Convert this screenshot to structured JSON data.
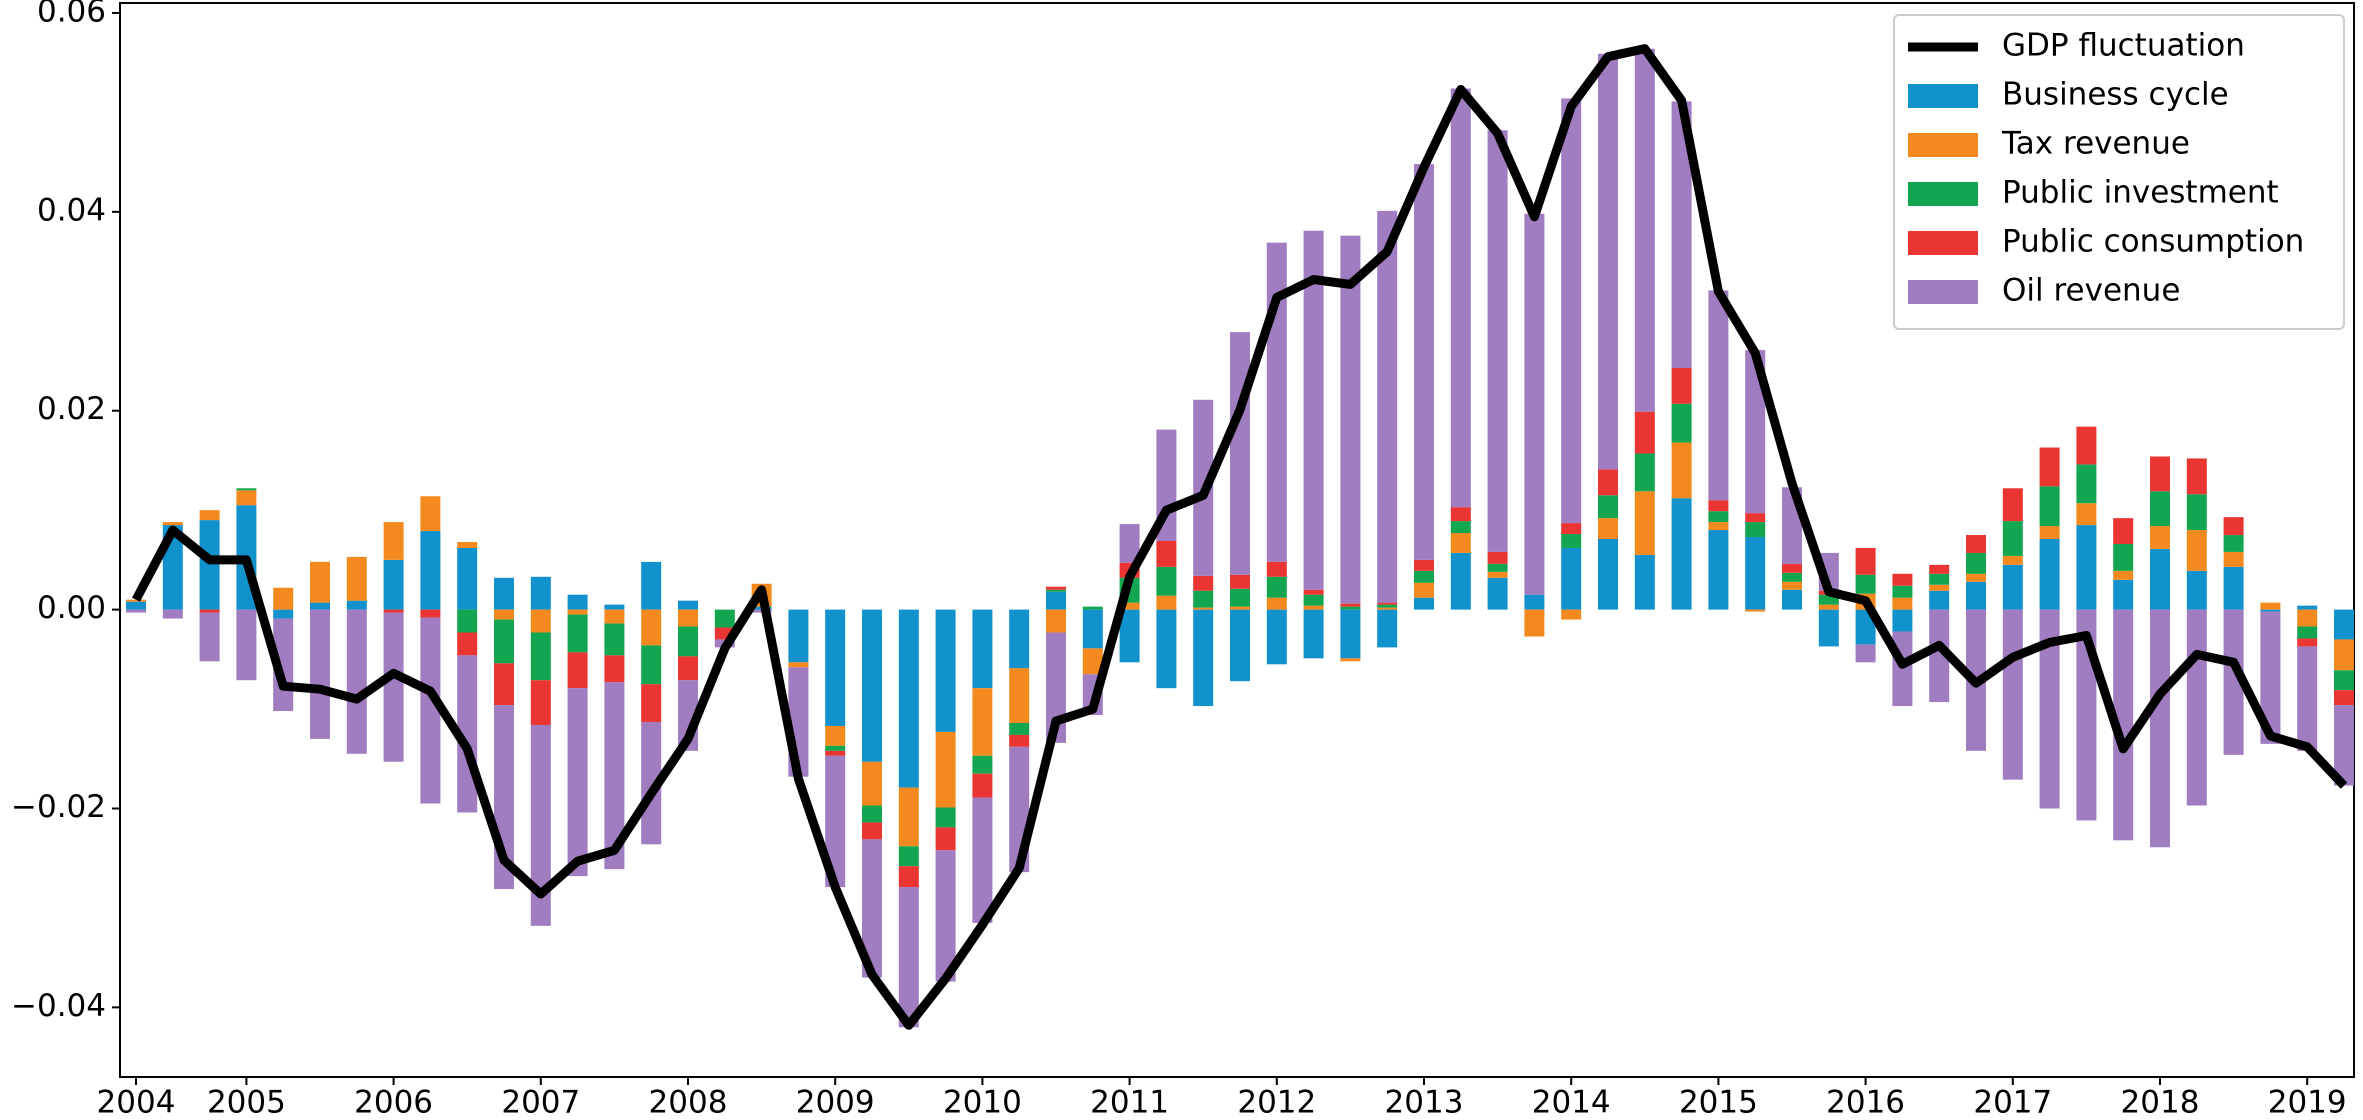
{
  "chart_data": {
    "type": "bar",
    "stacked": true,
    "legend": "upper right",
    "categories": [
      "2004",
      null,
      null,
      "2005",
      null,
      null,
      null,
      "2006",
      null,
      null,
      null,
      "2007",
      null,
      null,
      null,
      "2008",
      null,
      null,
      null,
      "2009",
      null,
      null,
      null,
      "2010",
      null,
      null,
      null,
      "2011",
      null,
      null,
      null,
      "2012",
      null,
      null,
      null,
      "2013",
      null,
      null,
      null,
      "2014",
      null,
      null,
      null,
      "2015",
      null,
      null,
      null,
      "2016",
      null,
      null,
      null,
      "2017",
      null,
      null,
      null,
      "2018",
      null,
      null,
      null,
      "2019",
      null
    ],
    "ylim": [
      -0.047,
      0.061
    ],
    "yticks": [
      {
        "value": -0.04,
        "label": "−0.04"
      },
      {
        "value": -0.02,
        "label": "−0.02"
      },
      {
        "value": 0,
        "label": "0.00"
      },
      {
        "value": 0.02,
        "label": "0.02"
      },
      {
        "value": 0.04,
        "label": "0.04"
      },
      {
        "value": 0.06,
        "label": "0.06"
      }
    ],
    "series": [
      {
        "name": "GDP fluctuation",
        "type": "line",
        "color": "#000000",
        "values": [
          0.001,
          0.008,
          0.005,
          0.005,
          -0.0077,
          -0.008,
          -0.009,
          -0.0064,
          -0.0082,
          -0.014,
          -0.0252,
          -0.0286,
          -0.0253,
          -0.0242,
          -0.0185,
          -0.013,
          -0.0039,
          0.002,
          -0.017,
          -0.0279,
          -0.0367,
          -0.0418,
          -0.0371,
          -0.0317,
          -0.026,
          -0.0112,
          -0.01,
          0.0033,
          0.01,
          0.0115,
          0.0201,
          0.0314,
          0.0332,
          0.0327,
          0.036,
          0.0445,
          0.0523,
          0.0479,
          0.0395,
          0.0506,
          0.0556,
          0.0564,
          0.0512,
          0.032,
          0.0258,
          0.0127,
          0.0018,
          0.0009,
          -0.0055,
          -0.0036,
          -0.0074,
          -0.0048,
          -0.0033,
          -0.0026,
          -0.014,
          -0.0085,
          -0.0045,
          -0.0053,
          -0.0127,
          -0.0138,
          -0.0177
        ]
      },
      {
        "name": "Business cycle",
        "color": "#1192cc",
        "values": [
          0.0008,
          0.0085,
          0.009,
          0.0105,
          -0.0009,
          0.0007,
          0.0009,
          0.005,
          0.0079,
          0.0062,
          0.0032,
          0.0033,
          0.0015,
          0.0005,
          0.0048,
          0.0009,
          0,
          0.0003,
          -0.0053,
          -0.0117,
          -0.0153,
          -0.0179,
          -0.0123,
          -0.0079,
          -0.0059,
          0.0018,
          -0.0039,
          -0.0053,
          -0.0079,
          -0.0097,
          -0.0072,
          -0.0055,
          -0.0049,
          -0.0049,
          -0.0038,
          0.0012,
          0.0057,
          0.0032,
          0.0015,
          0.0062,
          0.0071,
          0.0055,
          0.0112,
          0.008,
          0.0073,
          0.002,
          -0.0037,
          -0.0035,
          -0.0022,
          0.0019,
          0.0028,
          0.0045,
          0.0071,
          0.0085,
          0.003,
          0.0061,
          0.0039,
          0.0043,
          -0.0002,
          0.0004,
          -0.003
        ]
      },
      {
        "name": "Tax revenue",
        "color": "#f48a1f",
        "values": [
          0.0002,
          0.0003,
          0.001,
          0.0015,
          0.0022,
          0.0041,
          0.0044,
          0.0038,
          0.0035,
          0.0006,
          -0.001,
          -0.0023,
          -0.0005,
          -0.0014,
          -0.0036,
          -0.0017,
          0,
          0.0023,
          -0.0005,
          -0.002,
          -0.0044,
          -0.0059,
          -0.0076,
          -0.0068,
          -0.0055,
          -0.0023,
          -0.0026,
          0.0007,
          0.0014,
          0.0002,
          0.0003,
          0.0012,
          0.0004,
          -0.0003,
          0.0002,
          0.0015,
          0.002,
          0.0006,
          -0.0027,
          -0.001,
          0.0021,
          0.0064,
          0.0056,
          0.0008,
          -0.0002,
          0.0008,
          0.0005,
          0.0016,
          0.0012,
          0.0006,
          0.0008,
          0.0009,
          0.0013,
          0.0022,
          0.0009,
          0.0023,
          0.0041,
          0.0015,
          0.0007,
          -0.0017,
          -0.0031
        ]
      },
      {
        "name": "Public investment",
        "color": "#12a650",
        "values": [
          0,
          0,
          0,
          0.0002,
          0,
          0,
          0,
          0,
          0,
          -0.0023,
          -0.0044,
          -0.0048,
          -0.0038,
          -0.0032,
          -0.0039,
          -0.003,
          -0.0018,
          0,
          0,
          -0.0005,
          -0.0017,
          -0.002,
          -0.002,
          -0.0018,
          -0.0012,
          0.0002,
          0.0003,
          0.0025,
          0.0029,
          0.0017,
          0.0018,
          0.0021,
          0.0011,
          0.0003,
          0.0003,
          0.0012,
          0.0012,
          0.0008,
          0,
          0.0014,
          0.0023,
          0.0038,
          0.0039,
          0.0011,
          0.0015,
          0.0009,
          0.001,
          0.0019,
          0.0012,
          0.0011,
          0.0021,
          0.0035,
          0.004,
          0.0039,
          0.0027,
          0.0035,
          0.0036,
          0.0017,
          0,
          -0.0012,
          -0.002
        ]
      },
      {
        "name": "Public consumption",
        "color": "#ea3532",
        "values": [
          0,
          0,
          -0.0003,
          0,
          0,
          0,
          0,
          -0.0003,
          -0.0008,
          -0.0023,
          -0.0042,
          -0.0045,
          -0.0036,
          -0.0027,
          -0.0038,
          -0.0024,
          -0.0012,
          0,
          0,
          -0.0005,
          -0.0017,
          -0.0021,
          -0.0023,
          -0.0024,
          -0.0012,
          0.0003,
          0,
          0.0015,
          0.0026,
          0.0015,
          0.0014,
          0.0015,
          0.0005,
          0.0003,
          0.0002,
          0.0011,
          0.0014,
          0.0012,
          0,
          0.0011,
          0.0026,
          0.0042,
          0.0036,
          0.0011,
          0.0009,
          0.0009,
          0.0004,
          0.0027,
          0.0012,
          0.0009,
          0.0018,
          0.0033,
          0.0039,
          0.0038,
          0.0026,
          0.0035,
          0.0036,
          0.0018,
          0,
          -0.0008,
          -0.0015
        ]
      },
      {
        "name": "Oil revenue",
        "color": "#a07cc0",
        "values": [
          -0.0003,
          -0.0009,
          -0.0049,
          -0.0071,
          -0.0093,
          -0.013,
          -0.0145,
          -0.015,
          -0.0187,
          -0.0158,
          -0.0185,
          -0.0202,
          -0.0189,
          -0.0188,
          -0.0123,
          -0.0071,
          -0.0008,
          -0.0003,
          -0.011,
          -0.0132,
          -0.0139,
          -0.0141,
          -0.0132,
          -0.0126,
          -0.0126,
          -0.0111,
          -0.0041,
          0.0039,
          0.0112,
          0.0177,
          0.0244,
          0.0321,
          0.0361,
          0.037,
          0.0394,
          0.0398,
          0.0421,
          0.0424,
          0.0383,
          0.0427,
          0.0418,
          0.0365,
          0.0268,
          0.0211,
          0.0164,
          0.0077,
          0.0038,
          -0.0018,
          -0.0075,
          -0.0093,
          -0.0142,
          -0.0171,
          -0.02,
          -0.0212,
          -0.0232,
          -0.0239,
          -0.0197,
          -0.0146,
          -0.0133,
          -0.0105,
          -0.0081
        ]
      }
    ]
  }
}
